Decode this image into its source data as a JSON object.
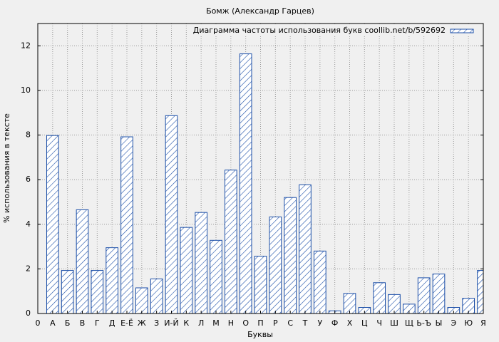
{
  "chart_data": {
    "type": "bar",
    "title": "Бомж (Александр Гарцев)",
    "xlabel": "Буквы",
    "ylabel": "% использования в тексте",
    "x": [
      1,
      2,
      3,
      4,
      5,
      6,
      7,
      8,
      9,
      10,
      11,
      12,
      13,
      14,
      15,
      16,
      17,
      18,
      19,
      20,
      21,
      22,
      23,
      24,
      25,
      26,
      27,
      28,
      29,
      30
    ],
    "series": [
      {
        "name": "Диаграмма частоты использования букв coollib.net/b/592692",
        "color": "#1c4fa8",
        "values": [
          7.98,
          1.93,
          4.65,
          1.93,
          2.95,
          7.92,
          1.15,
          1.55,
          8.87,
          3.86,
          4.53,
          3.28,
          6.43,
          11.64,
          2.57,
          4.33,
          5.2,
          5.77,
          2.8,
          0.12,
          0.9,
          0.27,
          1.38,
          0.85,
          0.42,
          1.6,
          1.77,
          0.27,
          0.68,
          1.93
        ]
      }
    ],
    "xlim": [
      0,
      30
    ],
    "xticks": [
      {
        "value": 0,
        "label": "0"
      },
      {
        "value": 1,
        "label": "А"
      },
      {
        "value": 2,
        "label": "Б"
      },
      {
        "value": 3,
        "label": "В"
      },
      {
        "value": 4,
        "label": "Г"
      },
      {
        "value": 5,
        "label": "Д"
      },
      {
        "value": 6,
        "label": "Е-Ё"
      },
      {
        "value": 7,
        "label": "Ж"
      },
      {
        "value": 8,
        "label": "З"
      },
      {
        "value": 9,
        "label": "И-Й"
      },
      {
        "value": 10,
        "label": "К"
      },
      {
        "value": 11,
        "label": "Л"
      },
      {
        "value": 12,
        "label": "М"
      },
      {
        "value": 13,
        "label": "Н"
      },
      {
        "value": 14,
        "label": "О"
      },
      {
        "value": 15,
        "label": "П"
      },
      {
        "value": 16,
        "label": "Р"
      },
      {
        "value": 17,
        "label": "С"
      },
      {
        "value": 18,
        "label": "Т"
      },
      {
        "value": 19,
        "label": "У"
      },
      {
        "value": 20,
        "label": "Ф"
      },
      {
        "value": 21,
        "label": "Х"
      },
      {
        "value": 22,
        "label": "Ц"
      },
      {
        "value": 23,
        "label": "Ч"
      },
      {
        "value": 24,
        "label": "Ш"
      },
      {
        "value": 25,
        "label": "Щ"
      },
      {
        "value": 26,
        "label": "Ь-Ъ"
      },
      {
        "value": 27,
        "label": "Ы"
      },
      {
        "value": 28,
        "label": "Э"
      },
      {
        "value": 29,
        "label": "Ю"
      },
      {
        "value": 30,
        "label": "Я"
      }
    ],
    "ylim": [
      0,
      13
    ],
    "yticks": [
      0,
      2,
      4,
      6,
      8,
      10,
      12
    ],
    "grid": true,
    "legend": "upper-right"
  }
}
